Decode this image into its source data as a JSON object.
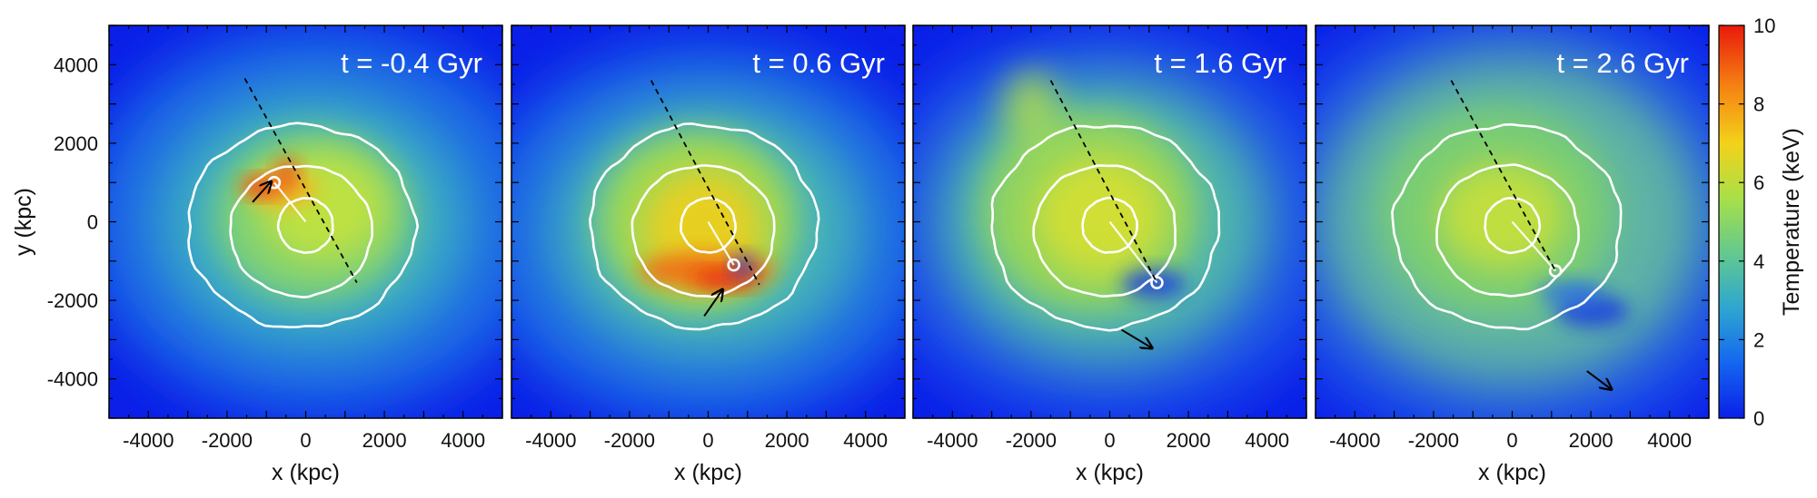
{
  "chart_data": [
    {
      "type": "heatmap",
      "title": "t = -0.4 Gyr",
      "xlabel": "x (kpc)",
      "ylabel": "y (kpc)",
      "xlim": [
        -5000,
        5000
      ],
      "ylim": [
        -5000,
        5000
      ],
      "xticks": [
        -4000,
        -2000,
        0,
        2000,
        4000
      ],
      "yticks": [
        -4000,
        -2000,
        0,
        2000,
        4000
      ],
      "dashed_line": [
        [
          -1550,
          3650
        ],
        [
          1300,
          -1550
        ]
      ],
      "subcluster": [
        -800,
        1000
      ],
      "arrow": [
        [
          -1350,
          500
        ],
        [
          -900,
          1000
        ]
      ]
    },
    {
      "type": "heatmap",
      "title": "t = 0.6 Gyr",
      "xlabel": "x (kpc)",
      "ylabel": "",
      "xlim": [
        -5000,
        5000
      ],
      "ylim": [
        -5000,
        5000
      ],
      "xticks": [
        -4000,
        -2000,
        0,
        2000,
        4000
      ],
      "yticks": [
        -4000,
        -2000,
        0,
        2000,
        4000
      ],
      "dashed_line": [
        [
          -1450,
          3600
        ],
        [
          1300,
          -1600
        ]
      ],
      "subcluster": [
        650,
        -1100
      ],
      "arrow": [
        [
          -100,
          -2400
        ],
        [
          350,
          -1750
        ]
      ]
    },
    {
      "type": "heatmap",
      "title": "t = 1.6 Gyr",
      "xlabel": "x (kpc)",
      "ylabel": "",
      "xlim": [
        -5000,
        5000
      ],
      "ylim": [
        -5000,
        5000
      ],
      "xticks": [
        -4000,
        -2000,
        0,
        2000,
        4000
      ],
      "yticks": [
        -4000,
        -2000,
        0,
        2000,
        4000
      ],
      "dashed_line": [
        [
          -1500,
          3600
        ],
        [
          1200,
          -1550
        ]
      ],
      "subcluster": [
        1200,
        -1550
      ],
      "arrow": [
        [
          300,
          -2750
        ],
        [
          1050,
          -3200
        ]
      ]
    },
    {
      "type": "heatmap",
      "title": "t = 2.6 Gyr",
      "xlabel": "x (kpc)",
      "ylabel": "",
      "xlim": [
        -5000,
        5000
      ],
      "ylim": [
        -5000,
        5000
      ],
      "xticks": [
        -4000,
        -2000,
        0,
        2000,
        4000
      ],
      "yticks": [
        -4000,
        -2000,
        0,
        2000,
        4000
      ],
      "dashed_line": [
        [
          -1550,
          3600
        ],
        [
          1100,
          -1250
        ]
      ],
      "subcluster": [
        1100,
        -1250
      ],
      "arrow": [
        [
          1900,
          -3800
        ],
        [
          2500,
          -4250
        ]
      ]
    }
  ],
  "colorbar": {
    "label": "Temperature (keV)",
    "range": [
      0,
      10
    ],
    "ticks": [
      0,
      2,
      4,
      6,
      8,
      10
    ],
    "colors": [
      "#0b1fe8",
      "#1466f0",
      "#2ea6d0",
      "#63c98e",
      "#a8e048",
      "#f4d21a",
      "#f57f12",
      "#e8190c"
    ]
  }
}
